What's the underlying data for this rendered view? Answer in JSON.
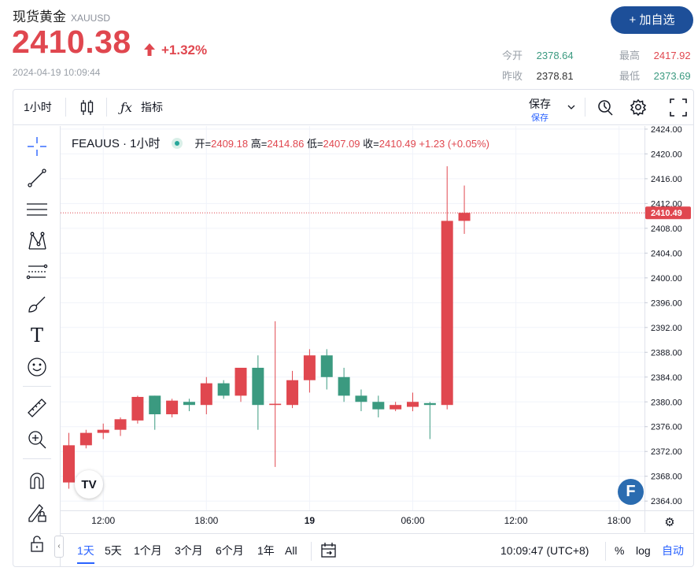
{
  "header": {
    "title": "现货黄金",
    "symbol": "XAUUSD",
    "price": "2410.38",
    "change": "+1.32%",
    "timestamp": "2024-04-19 10:09:44",
    "add_button": "+ 加自选",
    "stats": [
      {
        "label": "今开",
        "value": "2378.64",
        "color": "#3b9a80"
      },
      {
        "label": "最高",
        "value": "2417.92",
        "color": "#e0474f"
      },
      {
        "label": "昨收",
        "value": "2378.81",
        "color": "#333333"
      },
      {
        "label": "最低",
        "value": "2373.69",
        "color": "#3b9a80"
      }
    ]
  },
  "toolbar": {
    "interval": "1小时",
    "indicators": "指标",
    "save": "保存",
    "save_sub": "保存"
  },
  "legend": {
    "symbol": "FEAUUS · 1小时",
    "open_label": "开=",
    "open": "2409.18",
    "high_label": "高=",
    "high": "2414.86",
    "low_label": "低=",
    "low": "2407.09",
    "close_label": "收=",
    "close": "2410.49",
    "change": "+1.23 (+0.05%)"
  },
  "bottom": {
    "ranges": [
      "1天",
      "5天",
      "1个月",
      "3个月",
      "6个月",
      "1年",
      "All"
    ],
    "active_range": "1天",
    "clock": "10:09:47 (UTC+8)",
    "percent": "%",
    "log": "log",
    "auto": "自动"
  },
  "colors": {
    "up": "#e0474f",
    "down": "#3b9a80",
    "accent": "#2962ff",
    "brand": "#1d4f99"
  },
  "chart_data": {
    "type": "candlestick",
    "x_tick_labels": [
      "12:00",
      "18:00",
      "19",
      "06:00",
      "12:00",
      "18:00"
    ],
    "y_tick_labels": [
      "2424.00",
      "2420.00",
      "2416.00",
      "2412.00",
      "2408.00",
      "2404.00",
      "2400.00",
      "2396.00",
      "2392.00",
      "2388.00",
      "2384.00",
      "2380.00",
      "2376.00",
      "2372.00",
      "2368.00",
      "2364.00"
    ],
    "ylim": [
      2362.5,
      2424.5
    ],
    "last_price_label": "2410.49",
    "grid": true,
    "candles": [
      {
        "o": 2367.0,
        "h": 2375.0,
        "l": 2366.0,
        "c": 2373.0
      },
      {
        "o": 2373.0,
        "h": 2375.5,
        "l": 2372.5,
        "c": 2375.0
      },
      {
        "o": 2375.0,
        "h": 2376.5,
        "l": 2374.0,
        "c": 2375.5
      },
      {
        "o": 2375.5,
        "h": 2377.5,
        "l": 2374.5,
        "c": 2377.2
      },
      {
        "o": 2377.0,
        "h": 2381.0,
        "l": 2376.5,
        "c": 2380.8
      },
      {
        "o": 2381.0,
        "h": 2381.0,
        "l": 2375.5,
        "c": 2378.0
      },
      {
        "o": 2378.0,
        "h": 2380.5,
        "l": 2377.5,
        "c": 2380.2
      },
      {
        "o": 2380.0,
        "h": 2380.5,
        "l": 2378.5,
        "c": 2379.5
      },
      {
        "o": 2379.5,
        "h": 2384.0,
        "l": 2378.0,
        "c": 2383.0
      },
      {
        "o": 2383.0,
        "h": 2383.5,
        "l": 2380.5,
        "c": 2381.0
      },
      {
        "o": 2381.0,
        "h": 2385.5,
        "l": 2380.0,
        "c": 2385.5
      },
      {
        "o": 2385.5,
        "h": 2387.5,
        "l": 2375.5,
        "c": 2379.5
      },
      {
        "o": 2379.5,
        "h": 2393.0,
        "l": 2369.5,
        "c": 2379.7
      },
      {
        "o": 2379.5,
        "h": 2385.0,
        "l": 2379.0,
        "c": 2383.5
      },
      {
        "o": 2383.5,
        "h": 2388.5,
        "l": 2381.5,
        "c": 2387.5
      },
      {
        "o": 2387.5,
        "h": 2388.5,
        "l": 2382.0,
        "c": 2384.0
      },
      {
        "o": 2384.0,
        "h": 2385.5,
        "l": 2380.0,
        "c": 2381.0
      },
      {
        "o": 2381.0,
        "h": 2382.0,
        "l": 2378.5,
        "c": 2380.0
      },
      {
        "o": 2380.0,
        "h": 2381.0,
        "l": 2377.5,
        "c": 2378.8
      },
      {
        "o": 2378.8,
        "h": 2380.0,
        "l": 2378.5,
        "c": 2379.5
      },
      {
        "o": 2379.2,
        "h": 2381.5,
        "l": 2378.5,
        "c": 2380.0
      },
      {
        "o": 2379.8,
        "h": 2380.0,
        "l": 2374.0,
        "c": 2379.5
      },
      {
        "o": 2379.5,
        "h": 2418.0,
        "l": 2378.8,
        "c": 2409.2
      },
      {
        "o": 2409.2,
        "h": 2414.9,
        "l": 2407.1,
        "c": 2410.5
      }
    ]
  }
}
